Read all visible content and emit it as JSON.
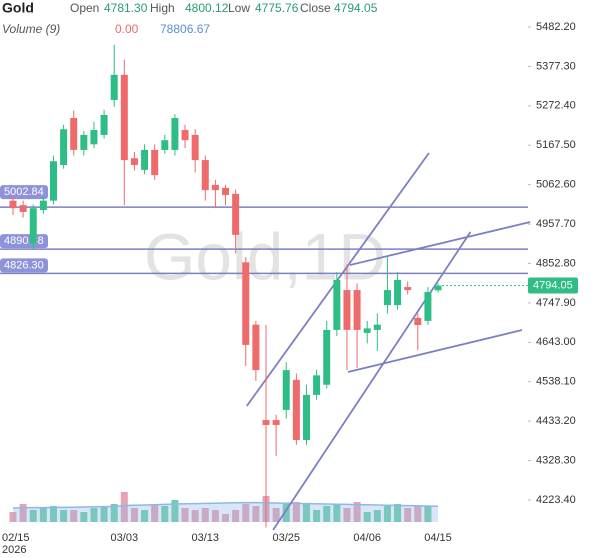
{
  "chart_data": {
    "type": "candlestick",
    "ohlc_legend": {
      "symbol": "Gold",
      "labels": [
        "Open",
        "High",
        "Low",
        "Close"
      ],
      "values": [
        "4781.30",
        "4800.12",
        "4775.76",
        "4794.05"
      ]
    },
    "volume_legend": {
      "label": "Volume (9)",
      "value": "0.00",
      "ma": "78806.67"
    },
    "watermark": "Gold,1D",
    "categories": [
      "02/15",
      null,
      null,
      null,
      null,
      null,
      null,
      null,
      null,
      null,
      null,
      "03/03",
      null,
      null,
      null,
      null,
      null,
      null,
      null,
      "03/13",
      null,
      null,
      null,
      null,
      null,
      null,
      null,
      "03/25",
      null,
      null,
      null,
      null,
      null,
      null,
      null,
      "04/06",
      null,
      null,
      null,
      null,
      null,
      null,
      "04/15"
    ],
    "year_label": "2026",
    "up_color": "#2dbd85",
    "down_color": "#ef6a6a",
    "candles": {
      "open": [
        5020,
        5008,
        4905,
        4995,
        5020,
        5115,
        5240,
        5155,
        5170,
        5195,
        5288,
        5355,
        5133,
        5102,
        5155,
        5155,
        5155,
        5208,
        5195,
        5128,
        5062,
        5054,
        5038,
        4856,
        4690,
        4436,
        4436,
        4463,
        4543,
        4383,
        4503,
        4530,
        4676,
        4782,
        4782,
        4668,
        4676,
        4742,
        4742,
        4790,
        4708,
        4700,
        4781.3
      ],
      "high": [
        5035,
        5020,
        5010,
        5030,
        5140,
        5222,
        5260,
        5205,
        5230,
        5262,
        5435,
        5395,
        5150,
        5170,
        5170,
        5195,
        5250,
        5222,
        5210,
        5140,
        5075,
        5062,
        5050,
        4870,
        4700,
        4689,
        4450,
        4590,
        4560,
        4530,
        4570,
        4700,
        4830,
        4850,
        4800,
        4700,
        4720,
        4870,
        4830,
        4805,
        4720,
        4790,
        4800.12
      ],
      "low": [
        4982,
        4975,
        4890,
        4985,
        5010,
        5105,
        5140,
        5140,
        5160,
        5185,
        5270,
        5008,
        5100,
        5090,
        5075,
        5145,
        5140,
        5160,
        5095,
        5020,
        5000,
        5008,
        4880,
        4580,
        4540,
        4150,
        4340,
        4440,
        4370,
        4370,
        4490,
        4520,
        4660,
        4569,
        4575,
        4640,
        4620,
        4720,
        4730,
        4770,
        4622,
        4690,
        4775.76
      ],
      "close": [
        5000,
        4990,
        5000,
        5020,
        5125,
        5210,
        5155,
        5195,
        5208,
        5248,
        5355,
        5128,
        5115,
        5155,
        5088,
        5181,
        5240,
        5181,
        5128,
        5048,
        5048,
        5035,
        4929,
        4636,
        4569,
        4423,
        4423,
        4569,
        4383,
        4503,
        4555,
        4676,
        4809,
        4676,
        4676,
        4680,
        4690,
        4782,
        4809,
        4782,
        4689,
        4777,
        4794.05
      ]
    },
    "last_price_label": "4794.05",
    "volume": [
      50000,
      90000,
      60000,
      70000,
      80000,
      60000,
      60000,
      50000,
      70000,
      80000,
      90000,
      150000,
      70000,
      60000,
      90000,
      80000,
      110000,
      70000,
      60000,
      70000,
      60000,
      40000,
      60000,
      90000,
      80000,
      130000,
      70000,
      90000,
      100000,
      90000,
      60000,
      80000,
      90000,
      70000,
      100000,
      50000,
      60000,
      80000,
      90000,
      70000,
      80000,
      80000,
      0
    ],
    "volume_ma": [
      70000,
      71000,
      72000,
      72000,
      73000,
      73000,
      74000,
      75000,
      76000,
      77000,
      78000,
      82000,
      84000,
      85000,
      86000,
      88000,
      90000,
      91000,
      92000,
      93000,
      94000,
      95000,
      96000,
      97000,
      97000,
      96000,
      95000,
      94000,
      93000,
      92000,
      91000,
      90000,
      89000,
      88000,
      87000,
      86000,
      85000,
      84000,
      83000,
      82000,
      81000,
      80000,
      78806.67
    ],
    "volume_lim": [
      0,
      200000
    ],
    "up_volume_color": "#6fcfa8",
    "down_volume_color": "#e7a3b3",
    "volume_ma_color": "#8fb8e8",
    "levels": [
      {
        "value": 5002.84,
        "label": "5002.84"
      },
      {
        "value": 4890.88,
        "label": "4890.88"
      },
      {
        "value": 4826.3,
        "label": "4826.30"
      }
    ],
    "level_color": "#7b7fc4",
    "trend_lines": [
      {
        "x": [
          23.1,
          41.1
        ],
        "y": [
          4473.4,
          5146.8
        ]
      },
      {
        "x": [
          25.7,
          45.2
        ],
        "y": [
          4143.4,
          4936.6
        ]
      },
      {
        "x": [
          33.3,
          51.1
        ],
        "y": [
          4848.7,
          4963.2
        ]
      },
      {
        "x": [
          33.1,
          50.3
        ],
        "y": [
          4563.9,
          4675.7
        ]
      }
    ],
    "ylim": [
      4143.4,
      5554.1
    ],
    "yticks": [
      {
        "value": 5482.2,
        "label": "5482.20"
      },
      {
        "value": 5377.3,
        "label": "5377.30"
      },
      {
        "value": 5272.4,
        "label": "5272.40"
      },
      {
        "value": 5167.5,
        "label": "5167.50"
      },
      {
        "value": 5062.6,
        "label": "5062.60"
      },
      {
        "value": 4957.7,
        "label": "4957.70"
      },
      {
        "value": 4852.8,
        "label": "4852.80"
      },
      {
        "value": 4747.9,
        "label": "4747.90"
      },
      {
        "value": 4643.0,
        "label": "4643.00"
      },
      {
        "value": 4538.1,
        "label": "4538.10"
      },
      {
        "value": 4433.2,
        "label": "4433.20"
      },
      {
        "value": 4328.3,
        "label": "4328.30"
      },
      {
        "value": 4223.4,
        "label": "4223.40"
      }
    ]
  }
}
